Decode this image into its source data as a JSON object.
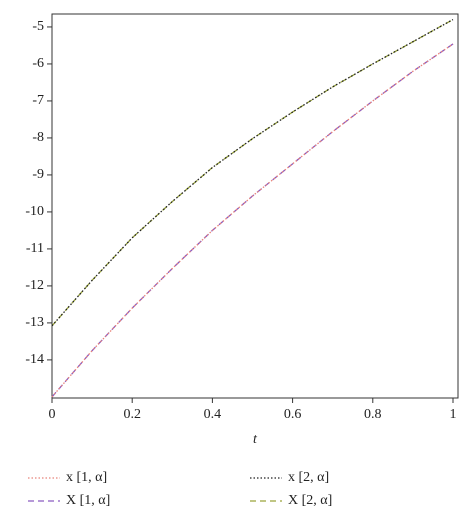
{
  "chart_data": {
    "type": "line",
    "x": [
      0,
      0.1,
      0.2,
      0.3,
      0.4,
      0.5,
      0.6,
      0.7,
      0.8,
      0.9,
      1
    ],
    "xlabel": "t",
    "xlim": [
      0,
      1.0125
    ],
    "xticks": [
      0,
      0.2,
      0.4,
      0.6,
      0.8,
      1
    ],
    "ylim": [
      -15.03,
      -4.65
    ],
    "yticks": [
      -14,
      -13,
      -12,
      -11,
      -10,
      -9,
      -8,
      -7,
      -6,
      -5
    ],
    "series": [
      {
        "name": "x [1, α]",
        "color": "#e8837a",
        "linestyle": "dotted",
        "values": [
          -15,
          -13.75,
          -12.6,
          -11.53,
          -10.5,
          -9.57,
          -8.7,
          -7.83,
          -7.0,
          -6.2,
          -5.46
        ]
      },
      {
        "name": "x [2, α]",
        "color": "#222222",
        "linestyle": "dotted",
        "values": [
          -13.08,
          -11.85,
          -10.7,
          -9.72,
          -8.8,
          -8.02,
          -7.3,
          -6.62,
          -6.0,
          -5.4,
          -4.8
        ]
      },
      {
        "name": "X [1, α]",
        "color": "#8a5cc0",
        "linestyle": "dashed",
        "values": [
          -15,
          -13.75,
          -12.6,
          -11.53,
          -10.5,
          -9.57,
          -8.7,
          -7.83,
          -7.0,
          -6.2,
          -5.46
        ]
      },
      {
        "name": "X [2, α]",
        "color": "#9aa53a",
        "linestyle": "dashed",
        "values": [
          -13.08,
          -11.85,
          -10.7,
          -9.72,
          -8.8,
          -8.02,
          -7.3,
          -6.62,
          -6.0,
          -5.4,
          -4.8
        ]
      }
    ]
  }
}
